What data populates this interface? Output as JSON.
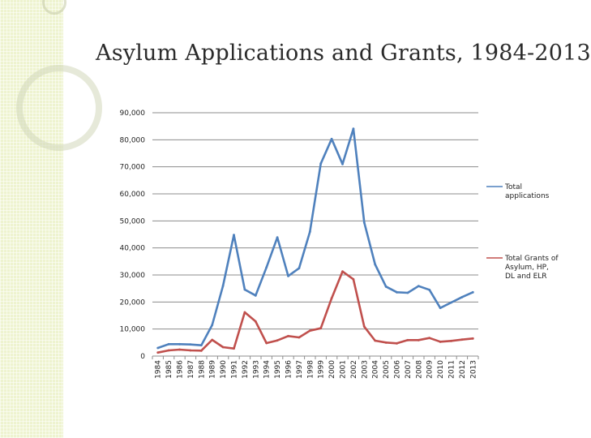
{
  "page": {
    "title": "Asylum Applications and Grants, 1984-2013"
  },
  "chart_data": {
    "type": "line",
    "title": "Asylum Applications and Grants, 1984-2013",
    "xlabel": "",
    "ylabel": "",
    "ylim": [
      0,
      90000
    ],
    "y_ticks": [
      0,
      10000,
      20000,
      30000,
      40000,
      50000,
      60000,
      70000,
      80000,
      90000
    ],
    "y_tick_labels": [
      "0",
      "10,000",
      "20,000",
      "30,000",
      "40,000",
      "50,000",
      "60,000",
      "70,000",
      "80,000",
      "90,000"
    ],
    "grid": true,
    "legend_position": "right",
    "x": [
      "1984",
      "1985",
      "1986",
      "1987",
      "1988",
      "1989",
      "1990",
      "1991",
      "1992",
      "1993",
      "1994",
      "1995",
      "1996",
      "1997",
      "1998",
      "1999",
      "2000",
      "2001",
      "2002",
      "2003",
      "2004",
      "2005",
      "2006",
      "2007",
      "2008",
      "2009",
      "2010",
      "2011",
      "2012",
      "2013"
    ],
    "series": [
      {
        "name": "Total applications",
        "color": "#4f81bd",
        "values": [
          3000,
          4400,
          4400,
          4300,
          4000,
          11500,
          26000,
          44800,
          24600,
          22400,
          32800,
          43900,
          29600,
          32500,
          46000,
          71200,
          80300,
          71000,
          84100,
          49400,
          33900,
          25700,
          23600,
          23400,
          25900,
          24500,
          17800,
          19800,
          21800,
          23600
        ]
      },
      {
        "name": "Total Grants of Asylum, HP, DL and ELR",
        "color": "#c0504d",
        "values": [
          1300,
          2100,
          2400,
          2100,
          2000,
          6000,
          3300,
          2800,
          16200,
          12800,
          4800,
          5800,
          7400,
          6900,
          9400,
          10300,
          21400,
          31300,
          28400,
          10900,
          5700,
          5000,
          4700,
          5900,
          5900,
          6700,
          5300,
          5600,
          6100,
          6500
        ]
      }
    ]
  }
}
